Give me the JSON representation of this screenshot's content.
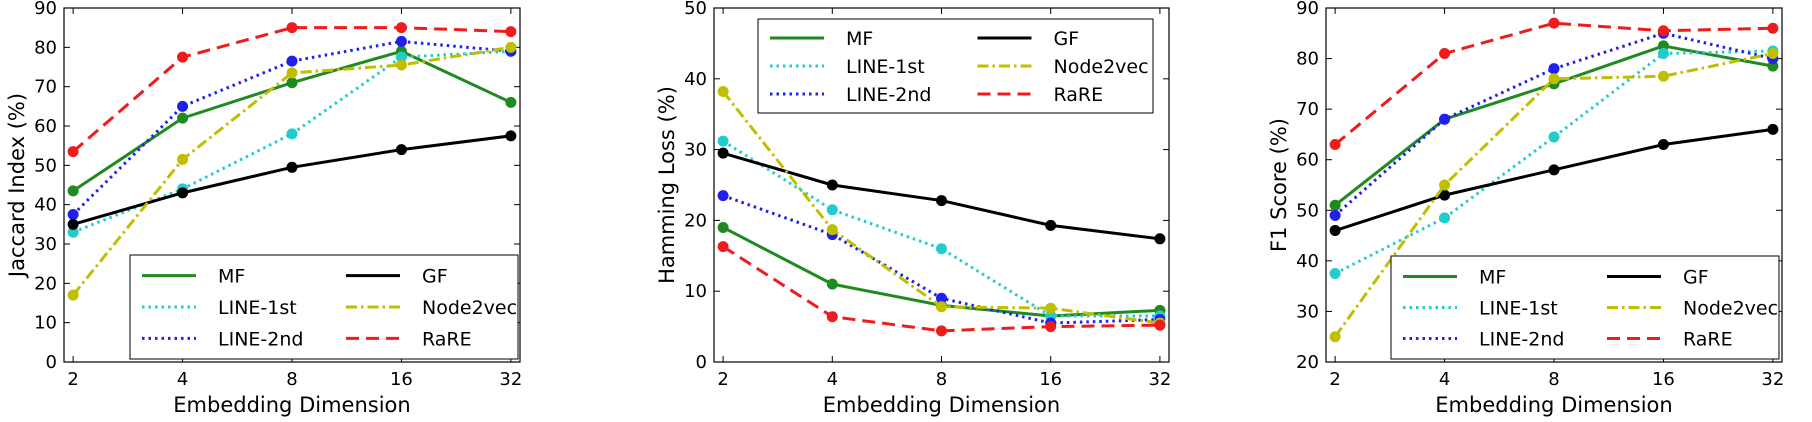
{
  "colors": {
    "MF": "#1f8a1f",
    "LINE-1st": "#22cccc",
    "LINE-2nd": "#1f1fee",
    "GF": "#000000",
    "Node2vec": "#bfbf00",
    "RaRE": "#ee1c1c"
  },
  "legend_labels": {
    "mf": "MF",
    "line1": "LINE-1st",
    "line2": "LINE-2nd",
    "gf": "GF",
    "node2vec": "Node2vec",
    "rare": "RaRE"
  },
  "chart_data": [
    {
      "type": "line",
      "xlabel": "Embedding Dimension",
      "ylabel": "Jaccard Index (%)",
      "categories": [
        "2",
        "4",
        "8",
        "16",
        "32"
      ],
      "ylim": [
        0,
        90
      ],
      "yticks": [
        0,
        10,
        20,
        30,
        40,
        50,
        60,
        70,
        80,
        90
      ],
      "legend_position": "bottom-right",
      "series": [
        {
          "name": "MF",
          "values": [
            43.5,
            62,
            71,
            79,
            66
          ]
        },
        {
          "name": "LINE-1st",
          "values": [
            33,
            44,
            58,
            77.5,
            79
          ]
        },
        {
          "name": "LINE-2nd",
          "values": [
            37.5,
            65,
            76.5,
            81.5,
            79
          ]
        },
        {
          "name": "GF",
          "values": [
            35,
            43,
            49.5,
            54,
            57.5
          ]
        },
        {
          "name": "Node2vec",
          "values": [
            17,
            51.5,
            73.5,
            75.5,
            80
          ]
        },
        {
          "name": "RaRE",
          "values": [
            53.5,
            77.5,
            85,
            85,
            84
          ]
        }
      ]
    },
    {
      "type": "line",
      "xlabel": "Embedding Dimension",
      "ylabel": "Hamming Loss (%)",
      "categories": [
        "2",
        "4",
        "8",
        "16",
        "32"
      ],
      "ylim": [
        0,
        50
      ],
      "yticks": [
        0,
        10,
        20,
        30,
        40,
        50
      ],
      "legend_position": "top",
      "series": [
        {
          "name": "MF",
          "values": [
            19,
            11,
            8,
            6.5,
            7.3
          ]
        },
        {
          "name": "LINE-1st",
          "values": [
            31.2,
            21.5,
            16,
            6.5,
            6.5
          ]
        },
        {
          "name": "LINE-2nd",
          "values": [
            23.5,
            18,
            9,
            5.5,
            6
          ]
        },
        {
          "name": "GF",
          "values": [
            29.5,
            25,
            22.8,
            19.3,
            17.4
          ]
        },
        {
          "name": "Node2vec",
          "values": [
            38.2,
            18.7,
            7.8,
            7.6,
            5.5
          ]
        },
        {
          "name": "RaRE",
          "values": [
            16.3,
            6.4,
            4.4,
            5,
            5.2
          ]
        }
      ]
    },
    {
      "type": "line",
      "xlabel": "Embedding Dimension",
      "ylabel": "F1 Score (%)",
      "categories": [
        "2",
        "4",
        "8",
        "16",
        "32"
      ],
      "ylim": [
        20,
        90
      ],
      "yticks": [
        20,
        30,
        40,
        50,
        60,
        70,
        80,
        90
      ],
      "legend_position": "bottom-right",
      "series": [
        {
          "name": "MF",
          "values": [
            51,
            68,
            75,
            82.5,
            78.5
          ]
        },
        {
          "name": "LINE-1st",
          "values": [
            37.5,
            48.5,
            64.5,
            81,
            81.5
          ]
        },
        {
          "name": "LINE-2nd",
          "values": [
            49,
            68,
            78,
            85,
            80
          ]
        },
        {
          "name": "GF",
          "values": [
            46,
            53,
            58,
            63,
            66
          ]
        },
        {
          "name": "Node2vec",
          "values": [
            25,
            55,
            76,
            76.5,
            81
          ]
        },
        {
          "name": "RaRE",
          "values": [
            63,
            81,
            87,
            85.5,
            86
          ]
        }
      ]
    }
  ]
}
